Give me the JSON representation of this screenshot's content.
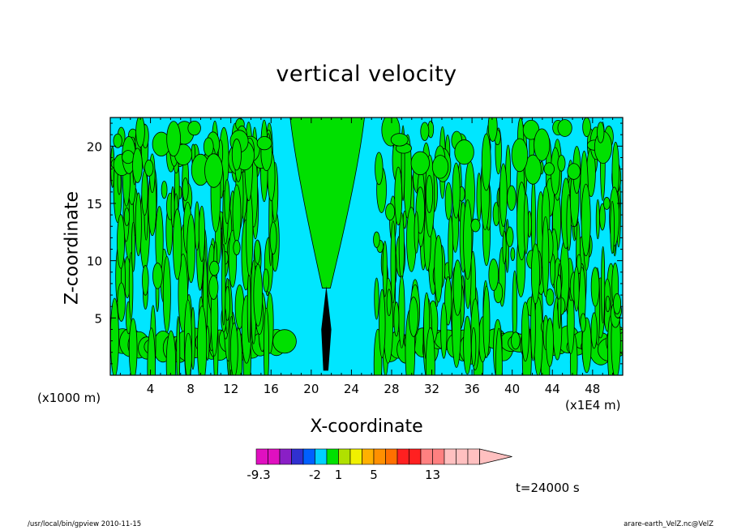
{
  "figure": {
    "title": "vertical velocity",
    "x_unit_left": "(x1000 m)",
    "x_unit_right": "(x1E4 m)",
    "time_label": "t=24000 s",
    "footer_left": "/usr/local/bin/gpview  2010-11-15",
    "footer_right": "arare-earth_VelZ.nc@VelZ"
  },
  "chart_data": {
    "type": "heatmap",
    "title": "vertical velocity",
    "xlabel": "X-coordinate",
    "ylabel": "Z-coordinate",
    "x_ticks": [
      "4",
      "8",
      "12",
      "16",
      "20",
      "24",
      "28",
      "32",
      "36",
      "40",
      "44",
      "48"
    ],
    "y_ticks": [
      "5",
      "10",
      "15",
      "20"
    ],
    "xlim": [
      0,
      51
    ],
    "ylim": [
      0,
      22.5
    ],
    "background_level_color": "#00e6ff",
    "positive_level_color": "#00e000",
    "plume_center_x": 21.5,
    "colorbar": {
      "colors": [
        "#e010c0",
        "#e010c0",
        "#8a1fc6",
        "#3030d0",
        "#0060ff",
        "#00d0ff",
        "#00e000",
        "#b0e000",
        "#f0f000",
        "#ffb000",
        "#ff9000",
        "#ff7000",
        "#ff2020",
        "#ff2020",
        "#ff8080",
        "#ff8080",
        "#ffc0c0",
        "#ffc0c0",
        "#ffc0c0"
      ],
      "labels": [
        {
          "text": "-9.3",
          "index": 0
        },
        {
          "text": "-2",
          "index": 5
        },
        {
          "text": "1",
          "index": 7
        },
        {
          "text": "5",
          "index": 10
        },
        {
          "text": "13",
          "index": 15
        }
      ]
    }
  }
}
